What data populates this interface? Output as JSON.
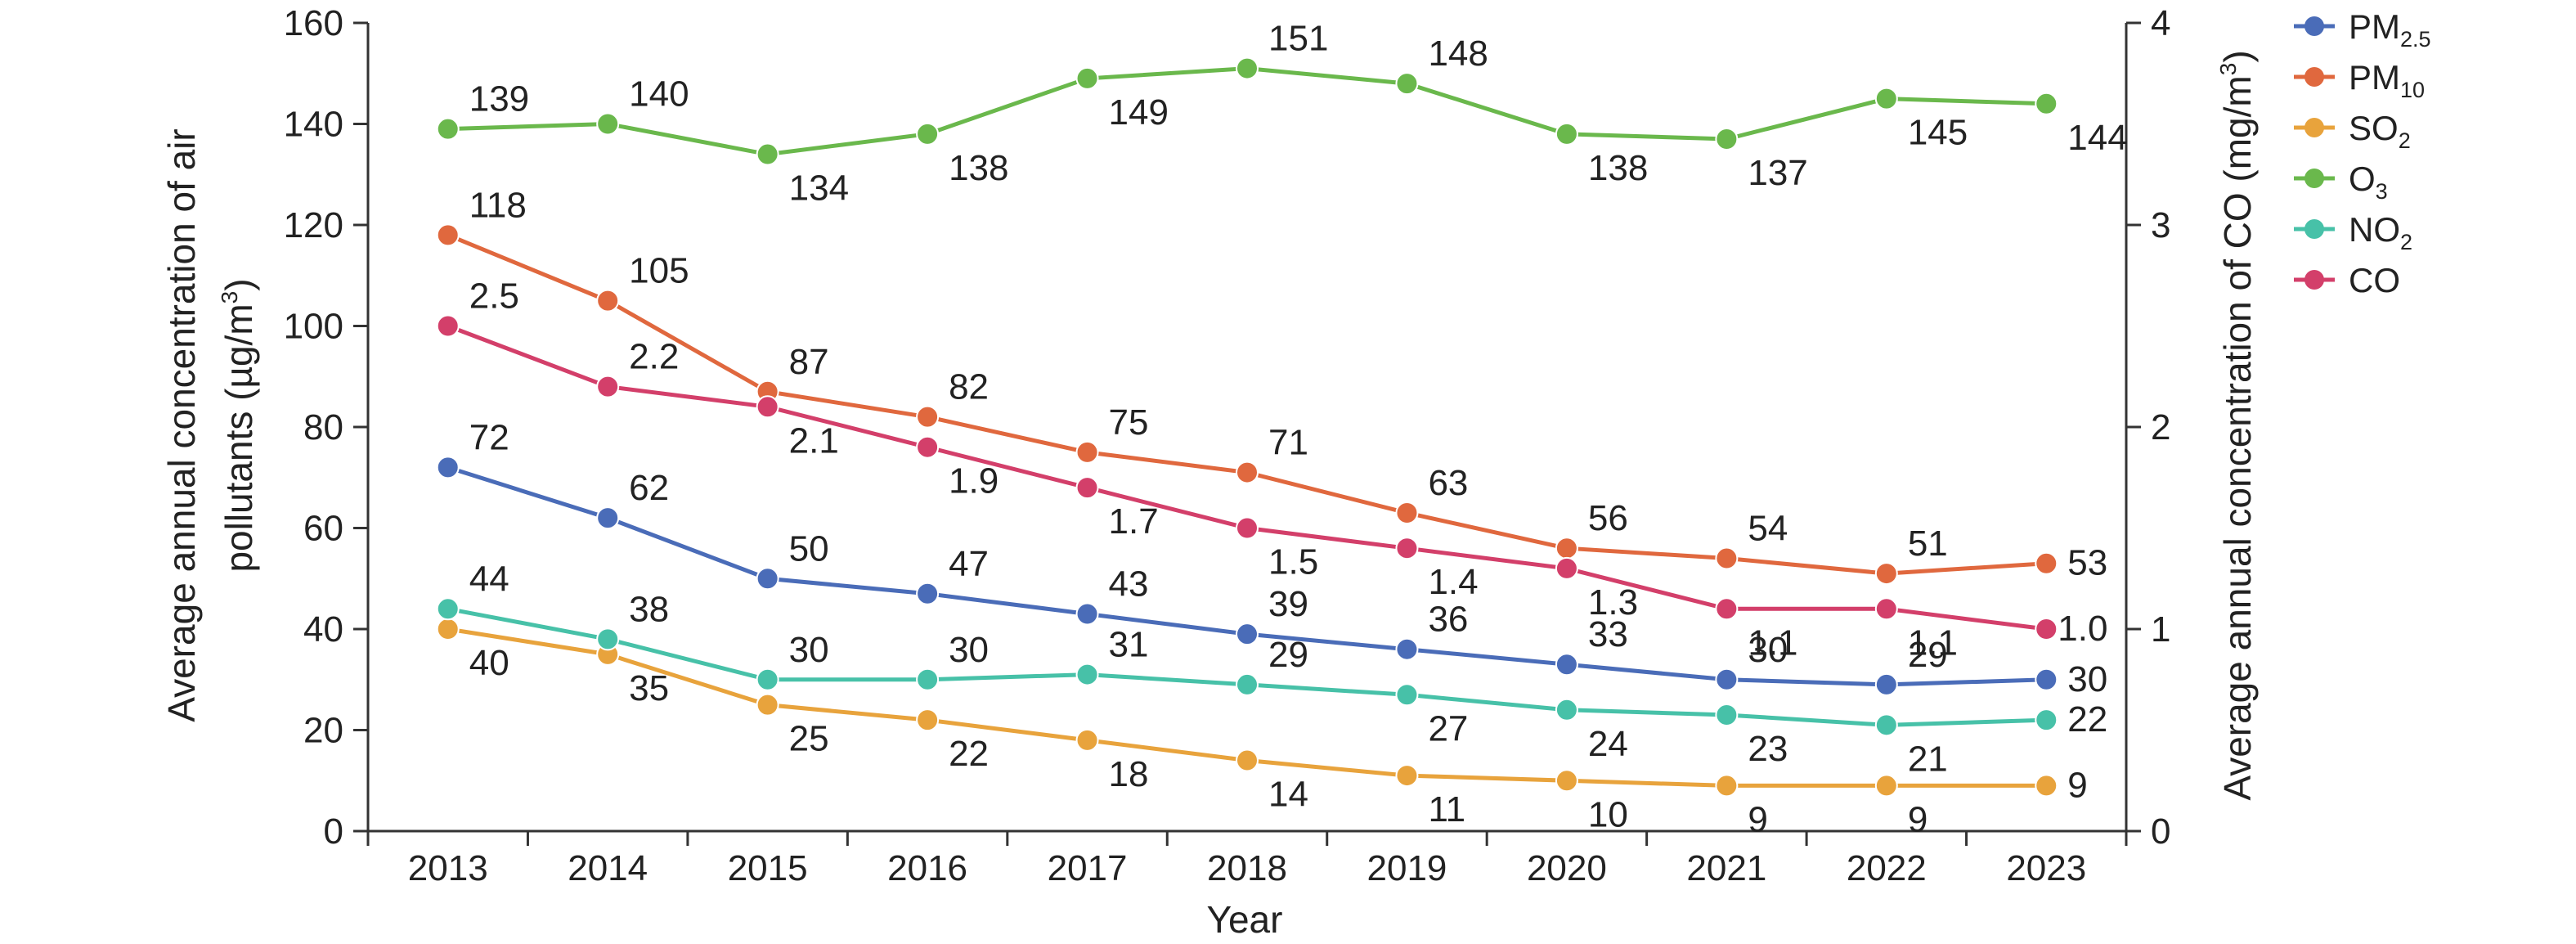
{
  "chart_data": {
    "type": "line",
    "categories": [
      "2013",
      "2014",
      "2015",
      "2016",
      "2017",
      "2018",
      "2019",
      "2020",
      "2021",
      "2022",
      "2023"
    ],
    "xlabel": "Year",
    "ylabel_left_line1": "Average annual concentration of air",
    "ylabel_left_line2_prefix": "pollutants (µg/m",
    "ylabel_left_line2_sup": "3",
    "ylabel_left_line2_suffix": ")",
    "ylabel_right_prefix": "Average annual concentration of CO (mg/m",
    "ylabel_right_sup": "3",
    "ylabel_right_suffix": ")",
    "ylim_left": [
      0,
      160
    ],
    "yticks_left": [
      "0",
      "20",
      "40",
      "60",
      "80",
      "100",
      "120",
      "140",
      "160"
    ],
    "ylim_right": [
      0,
      4
    ],
    "yticks_right": [
      "0",
      "1",
      "2",
      "3",
      "4"
    ],
    "grid": false,
    "legend_position": "right",
    "series": [
      {
        "name": "PM",
        "name_sub": "2.5",
        "color": "#4a6cb8",
        "axis": "left",
        "values": [
          72,
          62,
          50,
          47,
          43,
          39,
          36,
          33,
          30,
          29,
          30
        ],
        "labels": [
          "72",
          "62",
          "50",
          "47",
          "43",
          "39",
          "36",
          "33",
          "30",
          "29",
          "30"
        ]
      },
      {
        "name": "PM",
        "name_sub": "10",
        "color": "#e0683e",
        "axis": "left",
        "values": [
          118,
          105,
          87,
          82,
          75,
          71,
          63,
          56,
          54,
          51,
          53
        ],
        "labels": [
          "118",
          "105",
          "87",
          "82",
          "75",
          "71",
          "63",
          "56",
          "54",
          "51",
          "53"
        ]
      },
      {
        "name": "SO",
        "name_sub": "2",
        "color": "#e8a33c",
        "axis": "left",
        "values": [
          40,
          35,
          25,
          22,
          18,
          14,
          11,
          10,
          9,
          9,
          9
        ],
        "labels": [
          "40",
          "35",
          "25",
          "22",
          "18",
          "14",
          "11",
          "10",
          "9",
          "9",
          "9"
        ]
      },
      {
        "name": "O",
        "name_sub": "3",
        "color": "#6ab84c",
        "axis": "left",
        "values": [
          139,
          140,
          134,
          138,
          149,
          151,
          148,
          138,
          137,
          145,
          144
        ],
        "labels": [
          "139",
          "140",
          "134",
          "138",
          "149",
          "151",
          "148",
          "138",
          "137",
          "145",
          "144"
        ]
      },
      {
        "name": "NO",
        "name_sub": "2",
        "color": "#47c1a8",
        "axis": "left",
        "values": [
          44,
          38,
          30,
          30,
          31,
          29,
          27,
          24,
          23,
          21,
          22
        ],
        "labels": [
          "44",
          "38",
          "30",
          "30",
          "31",
          "29",
          "27",
          "24",
          "23",
          "21",
          "22"
        ]
      },
      {
        "name": "CO",
        "name_sub": "",
        "color": "#d33f6a",
        "axis": "right",
        "values": [
          2.5,
          2.2,
          2.1,
          1.9,
          1.7,
          1.5,
          1.4,
          1.3,
          1.1,
          1.1,
          1.0
        ],
        "labels": [
          "2.5",
          "2.2",
          "2.1",
          "1.9",
          "1.7",
          "1.5",
          "1.4",
          "1.3",
          "1.1",
          "1.1",
          "1.0"
        ]
      }
    ]
  }
}
